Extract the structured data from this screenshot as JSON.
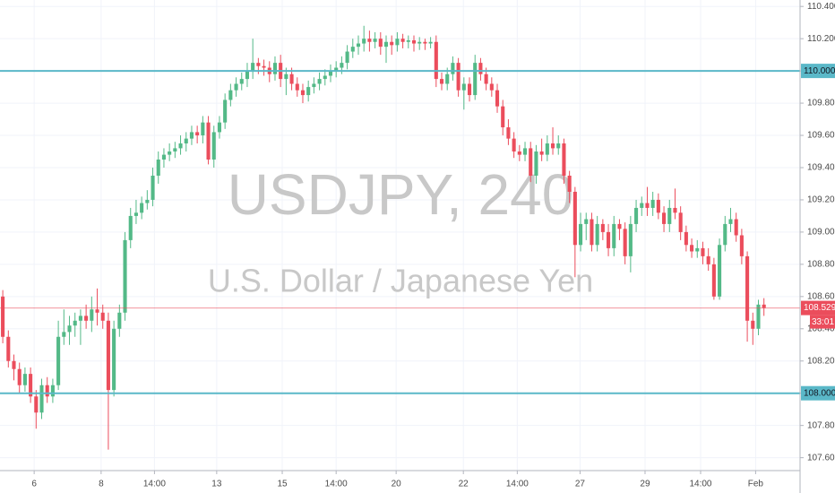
{
  "chart_data": {
    "type": "candlestick",
    "title": "USDJPY, 240",
    "subtitle": "U.S. Dollar / Japanese Yen",
    "open": [
      108.6,
      108.35,
      108.2,
      108.15,
      108.05,
      108.12,
      107.98,
      107.88,
      108.05,
      107.98,
      108.05,
      108.35,
      108.38,
      108.42,
      108.45,
      108.48,
      108.45,
      108.52,
      108.5,
      108.45,
      108.02,
      108.4,
      108.5,
      108.95,
      109.1,
      109.12,
      109.18,
      109.2,
      109.35,
      109.45,
      109.48,
      109.5,
      109.52,
      109.55,
      109.58,
      109.62,
      109.6,
      109.68,
      109.45,
      109.62,
      109.68,
      109.82,
      109.88,
      109.92,
      109.95,
      110.0,
      110.05,
      110.03,
      110.02,
      109.98,
      110.05,
      109.95,
      109.98,
      109.92,
      109.88,
      109.85,
      109.9,
      109.92,
      109.95,
      109.97,
      110.0,
      110.02,
      110.05,
      110.12,
      110.15,
      110.17,
      110.2,
      110.18,
      110.2,
      110.15,
      110.18,
      110.16,
      110.2,
      110.18,
      110.19,
      110.17,
      110.18,
      110.17,
      110.18,
      109.95,
      109.92,
      109.98,
      110.05,
      109.88,
      109.92,
      109.85,
      110.05,
      109.98,
      109.92,
      109.88,
      109.78,
      109.65,
      109.58,
      109.5,
      109.48,
      109.52,
      109.35,
      109.5,
      109.48,
      109.55,
      109.52,
      109.55,
      109.35,
      109.25,
      108.92,
      109.05,
      109.08,
      108.92,
      109.05,
      109.0,
      108.9,
      109.05,
      109.02,
      108.85,
      109.05,
      109.15,
      109.18,
      109.15,
      109.2,
      109.12,
      109.05,
      109.15,
      109.12,
      109.0,
      108.92,
      108.88,
      108.9,
      108.85,
      108.8,
      108.6,
      108.92,
      109.05,
      109.08,
      108.98,
      108.85,
      108.45,
      108.4,
      108.55
    ],
    "high": [
      108.64,
      108.39,
      108.24,
      108.19,
      108.16,
      108.16,
      108.02,
      108.09,
      108.1,
      108.09,
      108.45,
      108.52,
      108.48,
      108.5,
      108.52,
      108.55,
      108.6,
      108.65,
      108.55,
      108.5,
      108.45,
      108.55,
      109.0,
      109.15,
      109.2,
      109.22,
      109.26,
      109.4,
      109.5,
      109.52,
      109.55,
      109.56,
      109.6,
      109.62,
      109.66,
      109.66,
      109.72,
      109.72,
      109.66,
      109.72,
      109.86,
      109.92,
      109.96,
      109.99,
      110.05,
      110.2,
      110.08,
      110.07,
      110.06,
      110.09,
      110.1,
      110.02,
      110.02,
      109.96,
      109.92,
      109.94,
      109.96,
      109.99,
      110.01,
      110.04,
      110.06,
      110.09,
      110.16,
      110.2,
      110.22,
      110.28,
      110.25,
      110.24,
      110.24,
      110.22,
      110.22,
      110.24,
      110.23,
      110.22,
      110.22,
      110.21,
      110.2,
      110.21,
      110.22,
      109.99,
      110.02,
      110.09,
      110.08,
      109.96,
      109.96,
      110.1,
      110.08,
      110.02,
      109.96,
      109.92,
      109.82,
      109.7,
      109.62,
      109.54,
      109.56,
      109.56,
      109.54,
      109.58,
      109.6,
      109.65,
      109.6,
      109.58,
      109.38,
      109.28,
      109.12,
      109.12,
      109.12,
      109.1,
      109.08,
      109.05,
      109.1,
      109.08,
      109.06,
      109.1,
      109.2,
      109.22,
      109.28,
      109.25,
      109.24,
      109.16,
      109.2,
      109.27,
      109.16,
      109.04,
      108.96,
      108.95,
      108.94,
      108.9,
      108.84,
      108.96,
      109.1,
      109.15,
      109.12,
      109.02,
      108.88,
      108.5,
      108.58,
      108.59
    ],
    "low": [
      108.31,
      108.16,
      108.08,
      108.0,
      108.01,
      107.94,
      107.78,
      107.84,
      107.94,
      107.94,
      108.02,
      108.3,
      108.3,
      108.35,
      108.3,
      108.4,
      108.38,
      108.42,
      108.4,
      107.65,
      107.98,
      108.35,
      108.45,
      108.9,
      109.05,
      109.08,
      109.14,
      109.16,
      109.3,
      109.4,
      109.44,
      109.46,
      109.48,
      109.5,
      109.54,
      109.55,
      109.55,
      109.42,
      109.4,
      109.58,
      109.64,
      109.78,
      109.84,
      109.88,
      109.9,
      109.95,
      109.98,
      109.97,
      109.93,
      109.94,
      109.9,
      109.85,
      109.88,
      109.84,
      109.8,
      109.81,
      109.86,
      109.88,
      109.91,
      109.93,
      109.96,
      109.98,
      110.01,
      110.08,
      110.1,
      110.12,
      110.12,
      110.14,
      110.1,
      110.05,
      110.1,
      110.12,
      110.14,
      110.14,
      110.12,
      110.13,
      110.13,
      110.14,
      109.9,
      109.88,
      109.88,
      109.94,
      109.84,
      109.76,
      109.81,
      109.82,
      109.94,
      109.88,
      109.84,
      109.74,
      109.6,
      109.54,
      109.46,
      109.44,
      109.44,
      109.31,
      109.3,
      109.44,
      109.44,
      109.48,
      109.48,
      109.3,
      109.18,
      108.72,
      108.88,
      108.95,
      108.88,
      108.88,
      108.95,
      108.85,
      108.85,
      108.95,
      108.8,
      108.75,
      109.0,
      109.1,
      109.1,
      109.1,
      109.08,
      109.0,
      109.0,
      109.08,
      108.95,
      108.88,
      108.84,
      108.84,
      108.8,
      108.76,
      108.58,
      108.58,
      108.88,
      109.0,
      108.94,
      108.8,
      108.32,
      108.3,
      108.36,
      108.48
    ],
    "close": [
      108.35,
      108.2,
      108.15,
      108.05,
      108.12,
      107.98,
      107.88,
      108.05,
      107.98,
      108.05,
      108.35,
      108.38,
      108.42,
      108.45,
      108.48,
      108.45,
      108.52,
      108.5,
      108.45,
      108.02,
      108.4,
      108.5,
      108.95,
      109.1,
      109.12,
      109.18,
      109.2,
      109.35,
      109.45,
      109.48,
      109.5,
      109.52,
      109.55,
      109.58,
      109.62,
      109.6,
      109.68,
      109.45,
      109.62,
      109.68,
      109.82,
      109.88,
      109.92,
      109.95,
      110.0,
      110.05,
      110.03,
      110.02,
      109.98,
      110.05,
      109.95,
      109.98,
      109.92,
      109.88,
      109.85,
      109.9,
      109.92,
      109.95,
      109.97,
      110.0,
      110.02,
      110.05,
      110.12,
      110.15,
      110.17,
      110.2,
      110.18,
      110.2,
      110.15,
      110.18,
      110.16,
      110.2,
      110.18,
      110.19,
      110.17,
      110.18,
      110.17,
      110.18,
      109.95,
      109.92,
      109.98,
      110.05,
      109.88,
      109.92,
      109.85,
      110.05,
      109.98,
      109.92,
      109.88,
      109.78,
      109.65,
      109.58,
      109.5,
      109.48,
      109.52,
      109.35,
      109.5,
      109.48,
      109.55,
      109.52,
      109.55,
      109.35,
      109.25,
      108.92,
      109.05,
      109.08,
      108.92,
      109.05,
      109.0,
      108.9,
      109.05,
      109.02,
      108.85,
      109.05,
      109.15,
      109.18,
      109.15,
      109.2,
      109.12,
      109.05,
      109.15,
      109.12,
      109.0,
      108.92,
      108.88,
      108.9,
      108.85,
      108.8,
      108.6,
      108.92,
      109.05,
      109.08,
      108.98,
      108.85,
      108.45,
      108.4,
      108.55,
      108.529
    ],
    "up_color": "#53b987",
    "down_color": "#eb4d5c",
    "xlim": [
      -0.5,
      143.5
    ],
    "ylim": [
      107.52,
      110.44
    ],
    "xticks": [
      {
        "value": 5.65,
        "label": "6"
      },
      {
        "value": 17.7,
        "label": "8"
      },
      {
        "value": 27.3,
        "label": "14:00"
      },
      {
        "value": 38.5,
        "label": "13"
      },
      {
        "value": 50.3,
        "label": "15"
      },
      {
        "value": 60,
        "label": "14:00"
      },
      {
        "value": 70.8,
        "label": "20"
      },
      {
        "value": 82.9,
        "label": "22"
      },
      {
        "value": 92.6,
        "label": "14:00"
      },
      {
        "value": 103.9,
        "label": "27"
      },
      {
        "value": 115.6,
        "label": "29"
      },
      {
        "value": 125.6,
        "label": "14:00"
      },
      {
        "value": 135.5,
        "label": "Feb"
      }
    ],
    "yticks": [
      {
        "value": 107.6,
        "label": "107.600"
      },
      {
        "value": 107.8,
        "label": "107.800"
      },
      {
        "value": 108.0,
        "label": "108.000"
      },
      {
        "value": 108.2,
        "label": "108.200"
      },
      {
        "value": 108.4,
        "label": "108.400"
      },
      {
        "value": 108.6,
        "label": "108.600"
      },
      {
        "value": 108.8,
        "label": "108.800"
      },
      {
        "value": 109.0,
        "label": "109.000"
      },
      {
        "value": 109.2,
        "label": "109.200"
      },
      {
        "value": 109.4,
        "label": "109.400"
      },
      {
        "value": 109.6,
        "label": "109.600"
      },
      {
        "value": 109.8,
        "label": "109.800"
      },
      {
        "value": 110.0,
        "label": "110.000"
      },
      {
        "value": 110.2,
        "label": "110.200"
      },
      {
        "value": 110.4,
        "label": "110.400"
      }
    ],
    "grid": true,
    "levels": [
      {
        "value": 110.0,
        "label": "110.000"
      },
      {
        "value": 108.0,
        "label": "108.000"
      }
    ],
    "level_color": "#5ab8c8",
    "last_price": {
      "value": 108.529,
      "label": "108.529"
    },
    "countdown": "33:01"
  }
}
